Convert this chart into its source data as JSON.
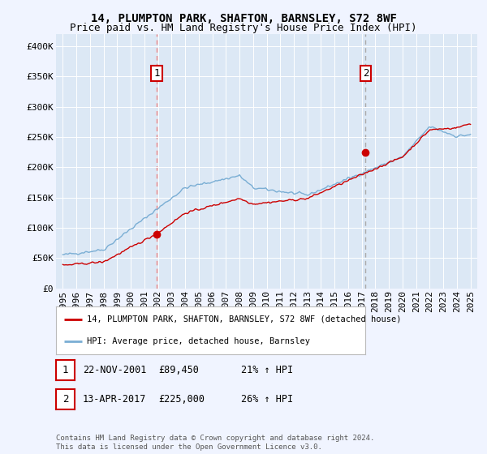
{
  "title": "14, PLUMPTON PARK, SHAFTON, BARNSLEY, S72 8WF",
  "subtitle": "Price paid vs. HM Land Registry's House Price Index (HPI)",
  "ylim": [
    0,
    420000
  ],
  "yticks": [
    0,
    50000,
    100000,
    150000,
    200000,
    250000,
    300000,
    350000,
    400000
  ],
  "ytick_labels": [
    "£0",
    "£50K",
    "£100K",
    "£150K",
    "£200K",
    "£250K",
    "£300K",
    "£350K",
    "£400K"
  ],
  "xlim_start": 1994.5,
  "xlim_end": 2025.5,
  "sale1_date": 2001.9,
  "sale1_price": 89450,
  "sale1_label": "1",
  "sale2_date": 2017.28,
  "sale2_price": 225000,
  "sale2_label": "2",
  "red_line_color": "#cc0000",
  "blue_line_color": "#7aaed4",
  "vline1_color": "#ee8888",
  "vline2_color": "#aaaaaa",
  "marker_color": "#cc0000",
  "background_color": "#f0f4ff",
  "plot_bg_color": "#dce8f5",
  "grid_color": "#ffffff",
  "legend_entry1": "14, PLUMPTON PARK, SHAFTON, BARNSLEY, S72 8WF (detached house)",
  "legend_entry2": "HPI: Average price, detached house, Barnsley",
  "table_row1": [
    "1",
    "22-NOV-2001",
    "£89,450",
    "21% ↑ HPI"
  ],
  "table_row2": [
    "2",
    "13-APR-2017",
    "£225,000",
    "26% ↑ HPI"
  ],
  "footer": "Contains HM Land Registry data © Crown copyright and database right 2024.\nThis data is licensed under the Open Government Licence v3.0.",
  "title_fontsize": 10,
  "subtitle_fontsize": 9,
  "tick_fontsize": 8,
  "figsize": [
    6.0,
    5.6
  ],
  "dpi": 100
}
